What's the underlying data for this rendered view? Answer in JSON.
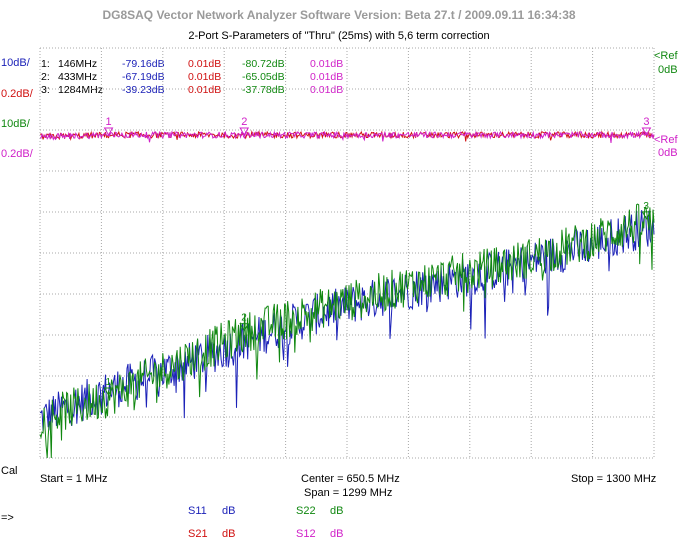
{
  "window": {
    "title": "DG8SAQ Vector Network Analyzer Software   Version:  Beta 27.t / 2009.09.11 16:34:38",
    "subtitle": "2-Port S-Parameters of \"Thru\" (25ms) with 5,6 term correction"
  },
  "scales": {
    "left_top_blue": "10dB/",
    "left_top_red": "0.2dB/",
    "left_mid_green": "10dB/",
    "left_mid_magenta": "0.2dB/",
    "right_top_green": "<Ref",
    "right_top_green_val": "0dB",
    "right_mid_magenta": "<Ref",
    "right_mid_magenta_val": "0dB",
    "cal_label": "Cal"
  },
  "marker_table": [
    {
      "idx": "1:",
      "freq": "146MHz",
      "s11": "-79.16dB",
      "s21": "0.01dB",
      "s22": "-80.72dB",
      "s12": "0.01dB"
    },
    {
      "idx": "2:",
      "freq": "433MHz",
      "s11": "-67.19dB",
      "s21": "0.01dB",
      "s22": "-65.05dB",
      "s12": "0.01dB"
    },
    {
      "idx": "3:",
      "freq": "1284MHz",
      "s11": "-39.23dB",
      "s21": "0.01dB",
      "s22": "-37.78dB",
      "s12": "0.01dB"
    }
  ],
  "markers_top": [
    "1",
    "2",
    "3"
  ],
  "markers_bottom": [
    "1",
    "2",
    "3"
  ],
  "footer": {
    "start": "Start = 1 MHz",
    "center": "Center = 650.5 MHz",
    "span": "Span = 1299 MHz",
    "stop": "Stop = 1300 MHz",
    "arrow": "=>"
  },
  "legend": [
    {
      "name": "S11",
      "unit": "dB",
      "color": "#1c22b8"
    },
    {
      "name": "S22",
      "unit": "dB",
      "color": "#118811"
    },
    {
      "name": "S21",
      "unit": "dB",
      "color": "#d01010"
    },
    {
      "name": "S12",
      "unit": "dB",
      "color": "#d020c8"
    }
  ],
  "colors": {
    "s11": "#1c22b8",
    "s21": "#d01010",
    "s22": "#118811",
    "s12": "#d020c8",
    "grid": "#a8a8a8",
    "title": "#9a9a9a"
  },
  "chart_data": {
    "type": "line",
    "x_start_mhz": 1,
    "x_stop_mhz": 1300,
    "x_divisions": 10,
    "y_divisions": 10,
    "grid": true,
    "series": [
      {
        "name": "S11",
        "unit": "dB",
        "scale": "10dB/",
        "x": [
          1,
          146,
          300,
          433,
          600,
          800,
          1000,
          1150,
          1284,
          1300
        ],
        "values": [
          -86,
          -79.16,
          -73,
          -67.19,
          -60,
          -54,
          -49,
          -44,
          -39.23,
          -40
        ]
      },
      {
        "name": "S22",
        "unit": "dB",
        "scale": "10dB/",
        "x": [
          1,
          146,
          300,
          433,
          600,
          800,
          1000,
          1150,
          1284,
          1300
        ],
        "values": [
          -86,
          -80.72,
          -72,
          -65.05,
          -59,
          -53,
          -48,
          -43,
          -37.78,
          -39
        ]
      },
      {
        "name": "S21",
        "unit": "dB",
        "scale": "0.2dB/",
        "x": [
          1,
          146,
          433,
          1284,
          1300
        ],
        "values": [
          0.0,
          0.01,
          0.01,
          0.01,
          0.0
        ]
      },
      {
        "name": "S12",
        "unit": "dB",
        "scale": "0.2dB/",
        "x": [
          1,
          146,
          433,
          1284,
          1300
        ],
        "values": [
          0.0,
          0.01,
          0.01,
          0.01,
          0.0
        ]
      }
    ]
  }
}
